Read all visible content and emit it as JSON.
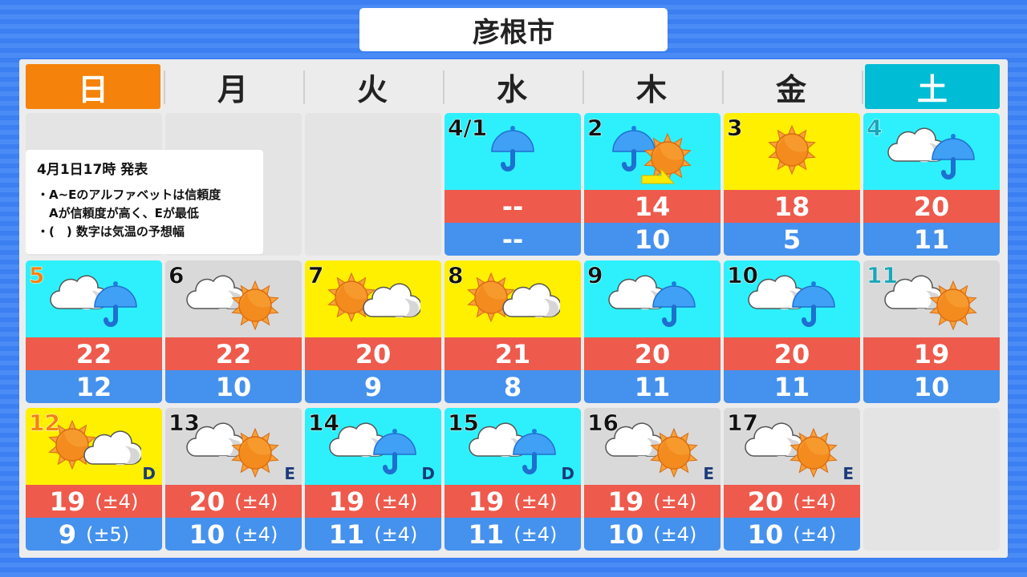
{
  "title": "彦根市",
  "weekdays": [
    "日",
    "月",
    "火",
    "水",
    "木",
    "金",
    "土"
  ],
  "note": {
    "issued": "4月1日17時 発表",
    "lines": [
      "・A~Eのアルファベットは信頼度",
      "　Aが信頼度が高く、Eが最低",
      "・(　) 数字は気温の予想幅"
    ]
  },
  "colors": {
    "sunny_bg": "#fff000",
    "rain_bg": "#2ef0fc",
    "cloudy_bg": "#d9d9d9",
    "high": "#ee5a4c",
    "low": "#4591ee",
    "sunday": "#f5820a",
    "saturday": "#00bcd4"
  },
  "days": [
    {
      "date": "4/1",
      "col": 3,
      "row": 0,
      "bg": "rain",
      "weather": [
        "umbrella"
      ],
      "high": "--",
      "low": "--"
    },
    {
      "date": "2",
      "col": 4,
      "row": 0,
      "bg": "rain",
      "weather": [
        "umbrella",
        "arrow",
        "sun"
      ],
      "high": "14",
      "low": "10"
    },
    {
      "date": "3",
      "col": 5,
      "row": 0,
      "bg": "sunny",
      "weather": [
        "sun"
      ],
      "high": "18",
      "low": "5"
    },
    {
      "date": "4",
      "col": 6,
      "row": 0,
      "bg": "rain",
      "weather": [
        "cloud",
        "umbrella"
      ],
      "high": "20",
      "low": "11"
    },
    {
      "date": "5",
      "col": 0,
      "row": 1,
      "bg": "rain",
      "weather": [
        "cloud",
        "umbrella"
      ],
      "high": "22",
      "low": "12"
    },
    {
      "date": "6",
      "col": 1,
      "row": 1,
      "bg": "cloudy",
      "weather": [
        "cloud",
        "sun"
      ],
      "high": "22",
      "low": "10"
    },
    {
      "date": "7",
      "col": 2,
      "row": 1,
      "bg": "sunny",
      "weather": [
        "sun",
        "cloud"
      ],
      "high": "20",
      "low": "9"
    },
    {
      "date": "8",
      "col": 3,
      "row": 1,
      "bg": "sunny",
      "weather": [
        "sun",
        "cloud"
      ],
      "high": "21",
      "low": "8"
    },
    {
      "date": "9",
      "col": 4,
      "row": 1,
      "bg": "rain",
      "weather": [
        "cloud",
        "umbrella"
      ],
      "high": "20",
      "low": "11"
    },
    {
      "date": "10",
      "col": 5,
      "row": 1,
      "bg": "rain",
      "weather": [
        "cloud",
        "umbrella"
      ],
      "high": "20",
      "low": "11"
    },
    {
      "date": "11",
      "col": 6,
      "row": 1,
      "bg": "cloudy",
      "weather": [
        "cloud",
        "sun"
      ],
      "high": "19",
      "low": "10"
    },
    {
      "date": "12",
      "col": 0,
      "row": 2,
      "bg": "sunny",
      "weather": [
        "sun",
        "cloud"
      ],
      "high": "19",
      "high_range": "(±4)",
      "low": "9",
      "low_range": "(±5)",
      "reliability": "D"
    },
    {
      "date": "13",
      "col": 1,
      "row": 2,
      "bg": "cloudy",
      "weather": [
        "cloud",
        "sun"
      ],
      "high": "20",
      "high_range": "(±4)",
      "low": "10",
      "low_range": "(±4)",
      "reliability": "E"
    },
    {
      "date": "14",
      "col": 2,
      "row": 2,
      "bg": "rain",
      "weather": [
        "cloud",
        "umbrella"
      ],
      "high": "19",
      "high_range": "(±4)",
      "low": "11",
      "low_range": "(±4)",
      "reliability": "D"
    },
    {
      "date": "15",
      "col": 3,
      "row": 2,
      "bg": "rain",
      "weather": [
        "cloud",
        "umbrella"
      ],
      "high": "19",
      "high_range": "(±4)",
      "low": "11",
      "low_range": "(±4)",
      "reliability": "D"
    },
    {
      "date": "16",
      "col": 4,
      "row": 2,
      "bg": "cloudy",
      "weather": [
        "cloud",
        "sun"
      ],
      "high": "19",
      "high_range": "(±4)",
      "low": "10",
      "low_range": "(±4)",
      "reliability": "E"
    },
    {
      "date": "17",
      "col": 5,
      "row": 2,
      "bg": "cloudy",
      "weather": [
        "cloud",
        "sun"
      ],
      "high": "20",
      "high_range": "(±4)",
      "low": "10",
      "low_range": "(±4)",
      "reliability": "E"
    }
  ]
}
